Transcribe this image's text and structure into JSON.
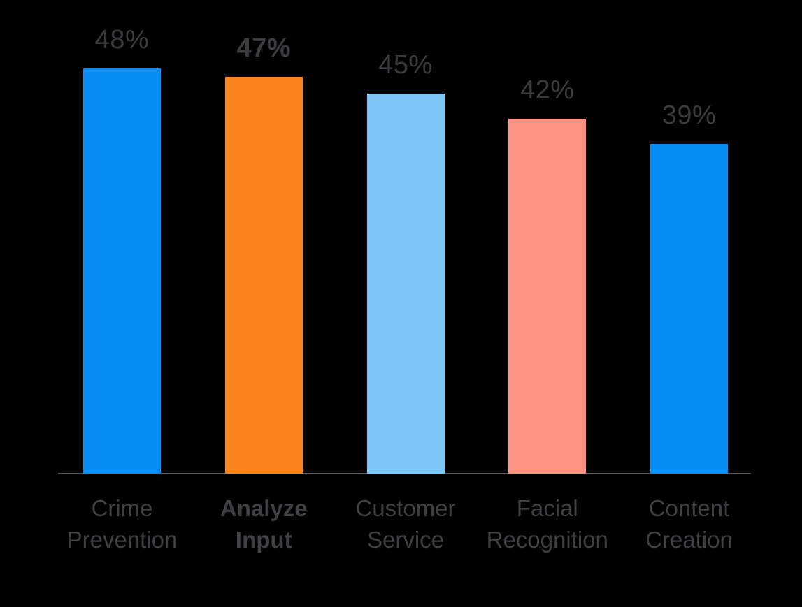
{
  "chart_data": {
    "type": "bar",
    "categories": [
      "Crime Prevention",
      "Analyze Input",
      "Customer Service",
      "Facial Recognition",
      "Content Creation"
    ],
    "category_lines": [
      [
        "Crime",
        "Prevention"
      ],
      [
        "Analyze",
        "Input"
      ],
      [
        "Customer",
        "Service"
      ],
      [
        "Facial",
        "Recognition"
      ],
      [
        "Content",
        "Creation"
      ]
    ],
    "values": [
      48,
      47,
      45,
      42,
      39
    ],
    "value_labels": [
      "48%",
      "47%",
      "45%",
      "42%",
      "39%"
    ],
    "emphasized_index": 1,
    "bar_colors": [
      "#098ef6",
      "#fb841c",
      "#7fc9f9",
      "#fc9382",
      "#098ef6"
    ],
    "title": "",
    "xlabel": "",
    "ylabel": "",
    "ylim": [
      0,
      56
    ],
    "grid": false,
    "legend": null,
    "background_color": "#000000",
    "value_label_color": "#393b3e",
    "category_label_color": "#3e4043",
    "axis_line_color": "#58595b"
  }
}
